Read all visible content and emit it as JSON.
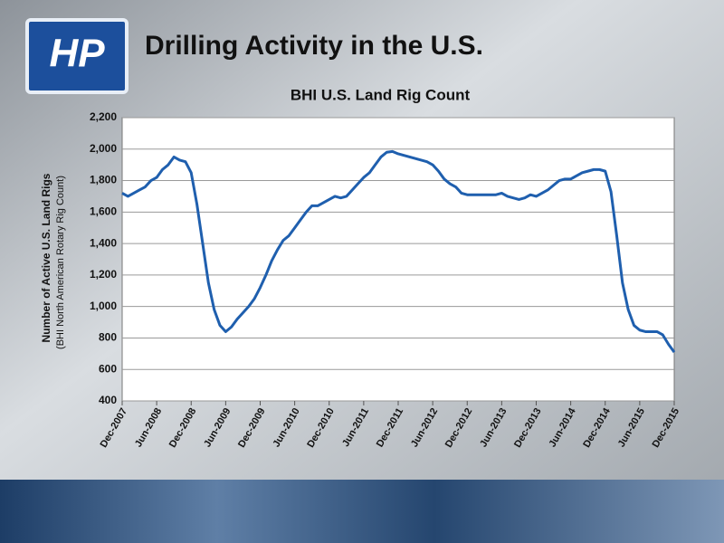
{
  "slide": {
    "title": "Drilling Activity in the U.S.",
    "logo": "HP"
  },
  "chart_data": {
    "type": "line",
    "title": "BHI U.S. Land Rig Count",
    "y_label": "Number of Active U.S. Land Rigs",
    "y_sublabel": "(BHI North American Rotary Rig Count)",
    "x": [
      "2007-12",
      "2008-01",
      "2008-02",
      "2008-03",
      "2008-04",
      "2008-05",
      "2008-06",
      "2008-07",
      "2008-08",
      "2008-09",
      "2008-10",
      "2008-11",
      "2008-12",
      "2009-01",
      "2009-02",
      "2009-03",
      "2009-04",
      "2009-05",
      "2009-06",
      "2009-07",
      "2009-08",
      "2009-09",
      "2009-10",
      "2009-11",
      "2009-12",
      "2010-01",
      "2010-02",
      "2010-03",
      "2010-04",
      "2010-05",
      "2010-06",
      "2010-07",
      "2010-08",
      "2010-09",
      "2010-10",
      "2010-11",
      "2010-12",
      "2011-01",
      "2011-02",
      "2011-03",
      "2011-04",
      "2011-05",
      "2011-06",
      "2011-07",
      "2011-08",
      "2011-09",
      "2011-10",
      "2011-11",
      "2011-12",
      "2012-01",
      "2012-02",
      "2012-03",
      "2012-04",
      "2012-05",
      "2012-06",
      "2012-07",
      "2012-08",
      "2012-09",
      "2012-10",
      "2012-11",
      "2012-12",
      "2013-01",
      "2013-02",
      "2013-03",
      "2013-04",
      "2013-05",
      "2013-06",
      "2013-07",
      "2013-08",
      "2013-09",
      "2013-10",
      "2013-11",
      "2013-12",
      "2014-01",
      "2014-02",
      "2014-03",
      "2014-04",
      "2014-05",
      "2014-06",
      "2014-07",
      "2014-08",
      "2014-09",
      "2014-10",
      "2014-11",
      "2014-12",
      "2015-01",
      "2015-02",
      "2015-03",
      "2015-04",
      "2015-05",
      "2015-06",
      "2015-07",
      "2015-08",
      "2015-09",
      "2015-10",
      "2015-11",
      "2015-12"
    ],
    "series": [
      {
        "name": "BHI U.S. Land Rig Count",
        "color": "#1f5fae",
        "values": [
          1720,
          1700,
          1720,
          1740,
          1760,
          1800,
          1820,
          1870,
          1900,
          1950,
          1930,
          1920,
          1850,
          1650,
          1400,
          1150,
          980,
          880,
          840,
          870,
          920,
          960,
          1000,
          1050,
          1120,
          1200,
          1290,
          1360,
          1420,
          1450,
          1500,
          1550,
          1600,
          1640,
          1640,
          1660,
          1680,
          1700,
          1690,
          1700,
          1740,
          1780,
          1820,
          1850,
          1900,
          1950,
          1980,
          1985,
          1970,
          1960,
          1950,
          1940,
          1930,
          1920,
          1900,
          1860,
          1810,
          1780,
          1760,
          1720,
          1710,
          1710,
          1710,
          1710,
          1710,
          1710,
          1720,
          1700,
          1690,
          1680,
          1690,
          1710,
          1700,
          1720,
          1740,
          1770,
          1800,
          1810,
          1810,
          1830,
          1850,
          1860,
          1870,
          1870,
          1860,
          1730,
          1450,
          1150,
          980,
          880,
          850,
          840,
          840,
          840,
          820,
          760,
          710
        ]
      }
    ],
    "xlim": [
      "2007-12",
      "2015-12"
    ],
    "xticks": [
      {
        "value": "2007-12",
        "label": "Dec-2007"
      },
      {
        "value": "2008-06",
        "label": "Jun-2008"
      },
      {
        "value": "2008-12",
        "label": "Dec-2008"
      },
      {
        "value": "2009-06",
        "label": "Jun-2009"
      },
      {
        "value": "2009-12",
        "label": "Dec-2009"
      },
      {
        "value": "2010-06",
        "label": "Jun-2010"
      },
      {
        "value": "2010-12",
        "label": "Dec-2010"
      },
      {
        "value": "2011-06",
        "label": "Jun-2011"
      },
      {
        "value": "2011-12",
        "label": "Dec-2011"
      },
      {
        "value": "2012-06",
        "label": "Jun-2012"
      },
      {
        "value": "2012-12",
        "label": "Dec-2012"
      },
      {
        "value": "2013-06",
        "label": "Jun-2013"
      },
      {
        "value": "2013-12",
        "label": "Dec-2013"
      },
      {
        "value": "2014-06",
        "label": "Jun-2014"
      },
      {
        "value": "2014-12",
        "label": "Dec-2014"
      },
      {
        "value": "2015-06",
        "label": "Jun-2015"
      },
      {
        "value": "2015-12",
        "label": "Dec-2015"
      }
    ],
    "ylim": [
      400,
      2200
    ],
    "yticks": [
      400,
      600,
      800,
      {
        "value": 1000,
        "label": "1,000"
      },
      {
        "value": 1200,
        "label": "1,200"
      },
      {
        "value": 1400,
        "label": "1,400"
      },
      {
        "value": 1600,
        "label": "1,600"
      },
      {
        "value": 1800,
        "label": "1,800"
      },
      {
        "value": 2000,
        "label": "2,000"
      },
      {
        "value": 2200,
        "label": "2,200"
      }
    ],
    "grid": true
  }
}
